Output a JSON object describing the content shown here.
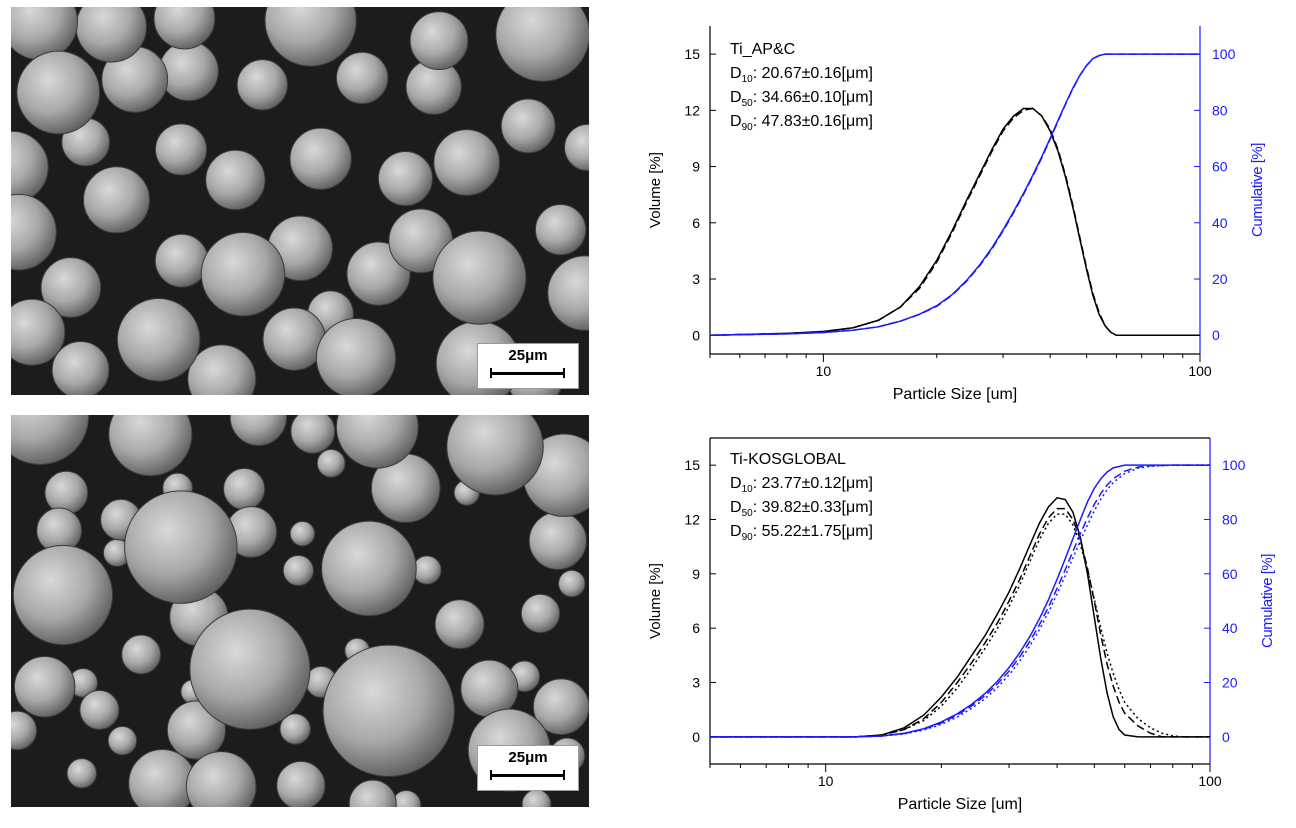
{
  "sem_images": [
    {
      "scale_label": "25μm"
    },
    {
      "scale_label": "25μm"
    }
  ],
  "chart_data": [
    {
      "type": "line",
      "title": "Ti_AP&C",
      "stats": [
        {
          "sub": "10",
          "text": ": 20.67±0.16[μm]"
        },
        {
          "sub": "50",
          "text": ": 34.66±0.10[μm]"
        },
        {
          "sub": "90",
          "text": ": 47.83±0.16[μm]"
        }
      ],
      "stat_prefix": "D",
      "xlabel": "Particle Size [um]",
      "ylabel": "Volume [%]",
      "y2label": "Cumulative [%]",
      "xscale": "log",
      "xlim": [
        5,
        100
      ],
      "ylim": [
        -1,
        16.5
      ],
      "y2lim": [
        -6.67,
        110
      ],
      "xticks": [
        10,
        100
      ],
      "yticks": [
        0,
        3,
        6,
        9,
        12,
        15
      ],
      "y2ticks": [
        0,
        20,
        40,
        60,
        80,
        100
      ],
      "colors": {
        "volume": "#000000",
        "cumulative": "#1a1aff"
      },
      "series": [
        {
          "axis": "left",
          "dash": "solid",
          "color": "#000000",
          "x": [
            5,
            8,
            10,
            12,
            14,
            16,
            18,
            20,
            22,
            24,
            26,
            28,
            30,
            32,
            34,
            36,
            38,
            40,
            42,
            44,
            46,
            48,
            50,
            52,
            54,
            56,
            58,
            60,
            65,
            70,
            80,
            100
          ],
          "y": [
            0,
            0.1,
            0.2,
            0.4,
            0.8,
            1.5,
            2.6,
            4.0,
            5.6,
            7.2,
            8.6,
            9.9,
            11.0,
            11.7,
            12.1,
            12.1,
            11.7,
            10.9,
            9.8,
            8.4,
            6.8,
            5.1,
            3.5,
            2.1,
            1.1,
            0.5,
            0.15,
            0,
            0,
            0,
            0,
            0
          ]
        },
        {
          "axis": "left",
          "dash": "dash",
          "color": "#000000",
          "x": [
            5,
            8,
            10,
            12,
            14,
            16,
            18,
            20,
            22,
            24,
            26,
            28,
            30,
            32,
            34,
            36,
            38,
            40,
            42,
            44,
            46,
            48,
            50,
            52,
            54,
            56,
            58,
            60,
            65,
            70,
            80,
            100
          ],
          "y": [
            0,
            0.1,
            0.2,
            0.4,
            0.8,
            1.5,
            2.5,
            3.9,
            5.5,
            7.1,
            8.5,
            9.8,
            10.9,
            11.6,
            12.0,
            12.1,
            11.7,
            11.0,
            9.9,
            8.5,
            6.9,
            5.2,
            3.6,
            2.2,
            1.2,
            0.5,
            0.15,
            0,
            0,
            0,
            0,
            0
          ]
        },
        {
          "axis": "right",
          "dash": "solid",
          "color": "#1a1aff",
          "x": [
            5,
            8,
            10,
            12,
            14,
            16,
            18,
            20,
            22,
            24,
            26,
            28,
            30,
            32,
            34,
            36,
            38,
            40,
            42,
            44,
            46,
            48,
            50,
            52,
            54,
            56,
            60,
            70,
            100
          ],
          "y": [
            0,
            0.5,
            1,
            1.8,
            3,
            5,
            7.5,
            10.5,
            14.5,
            19.5,
            25,
            31,
            37.5,
            44,
            50.5,
            57,
            63.5,
            70,
            76.5,
            82.5,
            88,
            92.5,
            96,
            98.5,
            99.5,
            100,
            100,
            100,
            100
          ]
        },
        {
          "axis": "right",
          "dash": "dash",
          "color": "#1a1aff",
          "x": [
            5,
            8,
            10,
            12,
            14,
            16,
            18,
            20,
            22,
            24,
            26,
            28,
            30,
            32,
            34,
            36,
            38,
            40,
            42,
            44,
            46,
            48,
            50,
            52,
            54,
            56,
            60,
            70,
            100
          ],
          "y": [
            0,
            0.5,
            1,
            1.8,
            3,
            5,
            7.4,
            10.3,
            14.3,
            19.2,
            24.7,
            30.6,
            37.1,
            43.6,
            50.1,
            56.6,
            63.1,
            69.7,
            76.2,
            82.3,
            87.8,
            92.4,
            95.9,
            98.4,
            99.5,
            100,
            100,
            100,
            100
          ]
        }
      ]
    },
    {
      "type": "line",
      "title": "Ti-KOSGLOBAL",
      "stats": [
        {
          "sub": "10",
          "text": ": 23.77±0.12[μm]"
        },
        {
          "sub": "50",
          "text": ": 39.82±0.33[μm]"
        },
        {
          "sub": "90",
          "text": ": 55.22±1.75[μm]"
        }
      ],
      "stat_prefix": "D",
      "xlabel": "Particle Size [um]",
      "ylabel": "Volume [%]",
      "y2label": "Cumulative [%]",
      "xscale": "log",
      "xlim": [
        5,
        100
      ],
      "ylim": [
        -1.5,
        16.5
      ],
      "y2lim": [
        -10,
        110
      ],
      "xticks": [
        10,
        100
      ],
      "yticks": [
        0,
        3,
        6,
        9,
        12,
        15
      ],
      "y2ticks": [
        0,
        20,
        40,
        60,
        80,
        100
      ],
      "colors": {
        "volume": "#000000",
        "cumulative": "#1a1aff"
      },
      "series": [
        {
          "axis": "left",
          "dash": "solid",
          "color": "#000000",
          "x": [
            5,
            10,
            12,
            14,
            16,
            18,
            20,
            22,
            24,
            26,
            28,
            30,
            32,
            34,
            36,
            38,
            40,
            42,
            44,
            46,
            48,
            50,
            52,
            54,
            56,
            58,
            60,
            65,
            70,
            100
          ],
          "y": [
            0,
            0,
            0,
            0.1,
            0.5,
            1.2,
            2.2,
            3.3,
            4.5,
            5.6,
            6.8,
            8.0,
            9.3,
            10.6,
            11.8,
            12.7,
            13.2,
            13.1,
            12.4,
            11.0,
            9.0,
            6.6,
            4.3,
            2.4,
            1.1,
            0.4,
            0.1,
            0,
            0,
            0
          ]
        },
        {
          "axis": "left",
          "dash": "dash",
          "color": "#000000",
          "x": [
            5,
            10,
            12,
            14,
            16,
            18,
            20,
            22,
            24,
            26,
            28,
            30,
            32,
            34,
            36,
            38,
            40,
            42,
            44,
            46,
            48,
            50,
            52,
            54,
            56,
            58,
            60,
            65,
            70,
            75,
            80,
            100
          ],
          "y": [
            0,
            0,
            0,
            0.1,
            0.4,
            1.0,
            1.9,
            3.0,
            4.1,
            5.2,
            6.3,
            7.5,
            8.7,
            10.0,
            11.2,
            12.1,
            12.6,
            12.6,
            12.0,
            10.9,
            9.3,
            7.5,
            5.6,
            4.0,
            2.8,
            1.9,
            1.3,
            0.6,
            0.2,
            0,
            0,
            0
          ]
        },
        {
          "axis": "left",
          "dash": "dot",
          "color": "#000000",
          "x": [
            5,
            10,
            12,
            14,
            16,
            18,
            20,
            22,
            24,
            26,
            28,
            30,
            32,
            34,
            36,
            38,
            40,
            42,
            44,
            46,
            48,
            50,
            52,
            54,
            56,
            58,
            60,
            65,
            70,
            75,
            80,
            85,
            100
          ],
          "y": [
            0,
            0,
            0,
            0.1,
            0.4,
            0.9,
            1.7,
            2.7,
            3.8,
            4.9,
            6.0,
            7.2,
            8.4,
            9.7,
            10.9,
            11.8,
            12.3,
            12.3,
            11.7,
            10.6,
            9.2,
            7.6,
            6.0,
            4.6,
            3.5,
            2.6,
            1.9,
            1.0,
            0.5,
            0.2,
            0.05,
            0,
            0
          ]
        },
        {
          "axis": "right",
          "dash": "solid",
          "color": "#1a1aff",
          "x": [
            5,
            10,
            12,
            14,
            16,
            18,
            20,
            22,
            24,
            26,
            28,
            30,
            32,
            34,
            36,
            38,
            40,
            42,
            44,
            46,
            48,
            50,
            52,
            54,
            56,
            60,
            70,
            100
          ],
          "y": [
            0,
            0,
            0,
            0.3,
            1.3,
            3,
            5.5,
            8.5,
            12,
            16,
            20.5,
            25.5,
            31,
            37,
            43.5,
            50.5,
            58,
            65.5,
            73,
            80,
            86.5,
            91.5,
            95,
            97.5,
            99,
            100,
            100,
            100
          ]
        },
        {
          "axis": "right",
          "dash": "dash",
          "color": "#1a1aff",
          "x": [
            5,
            10,
            12,
            14,
            16,
            18,
            20,
            22,
            24,
            26,
            28,
            30,
            32,
            34,
            36,
            38,
            40,
            42,
            44,
            46,
            48,
            50,
            52,
            54,
            56,
            60,
            65,
            70,
            80,
            100
          ],
          "y": [
            0,
            0,
            0,
            0.3,
            1.2,
            2.8,
            5.1,
            8,
            11.4,
            15.2,
            19.5,
            24.2,
            29.5,
            35.2,
            41.3,
            47.8,
            54.6,
            61.5,
            68.3,
            74.8,
            80.6,
            85.6,
            89.6,
            92.7,
            95,
            97.8,
            99.3,
            99.8,
            100,
            100
          ]
        },
        {
          "axis": "right",
          "dash": "dot",
          "color": "#1a1aff",
          "x": [
            5,
            10,
            12,
            14,
            16,
            18,
            20,
            22,
            24,
            26,
            28,
            30,
            32,
            34,
            36,
            38,
            40,
            42,
            44,
            46,
            48,
            50,
            52,
            54,
            56,
            60,
            65,
            70,
            80,
            100
          ],
          "y": [
            0,
            0,
            0,
            0.3,
            1.1,
            2.5,
            4.6,
            7.3,
            10.5,
            14.1,
            18.2,
            22.8,
            27.9,
            33.5,
            39.5,
            45.9,
            52.6,
            59.3,
            65.9,
            72.2,
            78,
            83.2,
            87.5,
            91,
            93.6,
            96.9,
            98.9,
            99.6,
            100,
            100
          ]
        }
      ]
    }
  ]
}
